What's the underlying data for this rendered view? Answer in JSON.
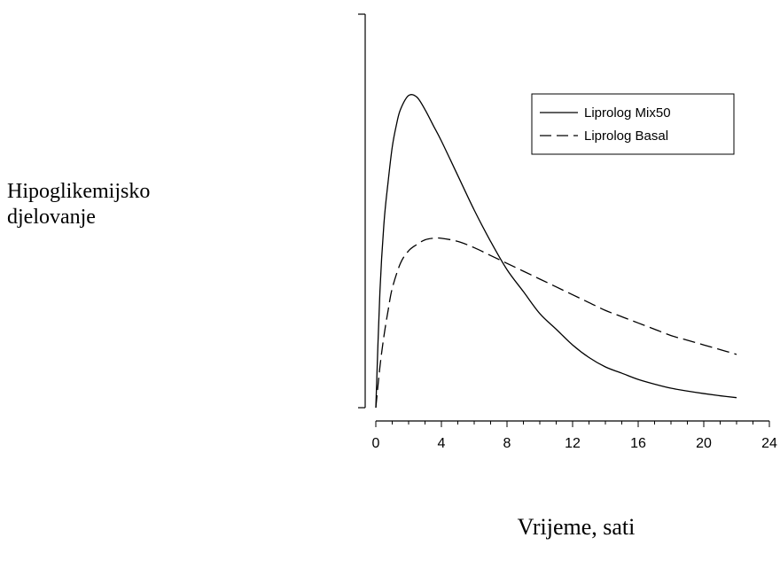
{
  "chart_data": {
    "type": "line",
    "title": "",
    "ylabel_lines": [
      "Hipoglikemijsko",
      "djelovanje"
    ],
    "xlabel": "Vrijeme, sati",
    "xlim": [
      0,
      24
    ],
    "ylim": [
      0,
      1
    ],
    "x_ticks": [
      0,
      4,
      8,
      12,
      16,
      20,
      24
    ],
    "grid": false,
    "legend_position": "top-right",
    "series": [
      {
        "name": "Liprolog Mix50",
        "style": "solid",
        "x": [
          0,
          0.25,
          0.5,
          0.75,
          1,
          1.25,
          1.5,
          2,
          2.5,
          3,
          3.5,
          4,
          5,
          6,
          7,
          8,
          9,
          10,
          11,
          12,
          13,
          14,
          15,
          16,
          17,
          18,
          19,
          20,
          21,
          22
        ],
        "y": [
          0,
          0.37,
          0.59,
          0.72,
          0.83,
          0.9,
          0.95,
          0.995,
          0.99,
          0.95,
          0.9,
          0.85,
          0.74,
          0.63,
          0.53,
          0.44,
          0.37,
          0.3,
          0.25,
          0.2,
          0.16,
          0.13,
          0.11,
          0.09,
          0.075,
          0.062,
          0.053,
          0.045,
          0.038,
          0.032
        ]
      },
      {
        "name": "Liprolog Basal",
        "style": "dashed",
        "x": [
          0,
          0.25,
          0.5,
          0.75,
          1,
          1.5,
          2,
          2.5,
          3,
          3.5,
          4,
          5,
          6,
          7,
          8,
          9,
          10,
          11,
          12,
          13,
          14,
          15,
          16,
          17,
          18,
          19,
          20,
          21,
          22
        ],
        "y": [
          0,
          0.13,
          0.23,
          0.31,
          0.38,
          0.46,
          0.5,
          0.52,
          0.535,
          0.54,
          0.54,
          0.53,
          0.51,
          0.485,
          0.46,
          0.435,
          0.41,
          0.385,
          0.36,
          0.335,
          0.31,
          0.29,
          0.27,
          0.25,
          0.23,
          0.215,
          0.2,
          0.185,
          0.17
        ]
      }
    ]
  }
}
